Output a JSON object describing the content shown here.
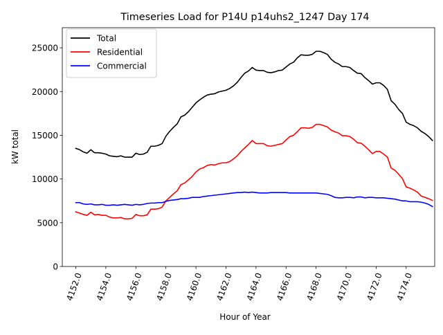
{
  "chart_data": {
    "type": "line",
    "title": "Timeseries Load for P14U p14uhs2_1247  Day 174",
    "xlabel": "Hour of Year",
    "ylabel": "kW total",
    "xlim": [
      4151.1,
      4175.9
    ],
    "ylim": [
      0,
      27300
    ],
    "x_ticks": [
      4152,
      4154,
      4156,
      4158,
      4160,
      4162,
      4164,
      4166,
      4168,
      4170,
      4172,
      4174
    ],
    "x_tick_labels": [
      "4152.0",
      "4154.0",
      "4156.0",
      "4158.0",
      "4160.0",
      "4162.0",
      "4164.0",
      "4166.0",
      "4168.0",
      "4170.0",
      "4172.0",
      "4174.0"
    ],
    "y_ticks": [
      0,
      5000,
      10000,
      15000,
      20000,
      25000
    ],
    "y_tick_labels": [
      "0",
      "5000",
      "10000",
      "15000",
      "20000",
      "25000"
    ],
    "legend_position": "top-left",
    "x": [
      4152.0,
      4152.25,
      4152.5,
      4152.75,
      4153.0,
      4153.25,
      4153.5,
      4153.75,
      4154.0,
      4154.25,
      4154.5,
      4154.75,
      4155.0,
      4155.25,
      4155.5,
      4155.75,
      4156.0,
      4156.25,
      4156.5,
      4156.75,
      4157.0,
      4157.25,
      4157.5,
      4157.75,
      4158.0,
      4158.25,
      4158.5,
      4158.75,
      4159.0,
      4159.25,
      4159.5,
      4159.75,
      4160.0,
      4160.25,
      4160.5,
      4160.75,
      4161.0,
      4161.25,
      4161.5,
      4161.75,
      4162.0,
      4162.25,
      4162.5,
      4162.75,
      4163.0,
      4163.25,
      4163.5,
      4163.75,
      4164.0,
      4164.25,
      4164.5,
      4164.75,
      4165.0,
      4165.25,
      4165.5,
      4165.75,
      4166.0,
      4166.25,
      4166.5,
      4166.75,
      4167.0,
      4167.25,
      4167.5,
      4167.75,
      4168.0,
      4168.25,
      4168.5,
      4168.75,
      4169.0,
      4169.25,
      4169.5,
      4169.75,
      4170.0,
      4170.25,
      4170.5,
      4170.75,
      4171.0,
      4171.25,
      4171.5,
      4171.75,
      4172.0,
      4172.25,
      4172.5,
      4172.75,
      4173.0,
      4173.25,
      4173.5,
      4173.75,
      4174.0,
      4174.25,
      4174.5,
      4174.75,
      4175.0,
      4175.25,
      4175.5,
      4175.75
    ],
    "series": [
      {
        "name": "Total",
        "color": "#000000",
        "values": [
          13500,
          13350,
          13100,
          12950,
          13350,
          13000,
          13000,
          12950,
          12850,
          12650,
          12600,
          12550,
          12650,
          12500,
          12500,
          12500,
          12950,
          12800,
          12850,
          13050,
          13750,
          13750,
          13850,
          14050,
          14900,
          15450,
          15900,
          16300,
          17100,
          17300,
          17700,
          18200,
          18700,
          19050,
          19350,
          19600,
          19700,
          19750,
          19950,
          20050,
          20150,
          20350,
          20650,
          21050,
          21600,
          22100,
          22350,
          22750,
          22450,
          22400,
          22400,
          22200,
          22150,
          22250,
          22400,
          22450,
          22800,
          23150,
          23350,
          23850,
          24200,
          24150,
          24150,
          24250,
          24600,
          24600,
          24450,
          24250,
          23700,
          23350,
          23150,
          22850,
          22850,
          22750,
          22400,
          22100,
          22050,
          21600,
          21250,
          20850,
          21000,
          21000,
          20700,
          20250,
          18950,
          18550,
          17950,
          17500,
          16500,
          16250,
          16100,
          15850,
          15450,
          15200,
          14850,
          14400
        ]
      },
      {
        "name": "Residential",
        "color": "#ff0000",
        "values": [
          6250,
          6100,
          5950,
          5850,
          6200,
          5900,
          5950,
          5850,
          5850,
          5650,
          5550,
          5550,
          5600,
          5450,
          5450,
          5500,
          5950,
          5800,
          5800,
          5900,
          6550,
          6550,
          6600,
          6800,
          7500,
          7900,
          8300,
          8650,
          9350,
          9550,
          9900,
          10300,
          10800,
          11150,
          11300,
          11550,
          11650,
          11600,
          11750,
          11850,
          11850,
          12000,
          12300,
          12650,
          13150,
          13550,
          13950,
          14400,
          14050,
          14050,
          14050,
          13800,
          13750,
          13850,
          13950,
          14050,
          14450,
          14850,
          15000,
          15400,
          15850,
          15850,
          15800,
          15900,
          16250,
          16250,
          16100,
          15950,
          15600,
          15400,
          15250,
          14950,
          14950,
          14850,
          14550,
          14150,
          14100,
          13750,
          13350,
          12900,
          13150,
          13150,
          12850,
          12500,
          11250,
          11000,
          10550,
          10050,
          9100,
          8950,
          8750,
          8500,
          8050,
          7900,
          7750,
          7550
        ]
      },
      {
        "name": "Commercial",
        "color": "#0000ff",
        "values": [
          7300,
          7300,
          7150,
          7100,
          7150,
          7050,
          7050,
          7100,
          7000,
          7000,
          7050,
          7000,
          7050,
          7100,
          7050,
          7000,
          7100,
          7050,
          7100,
          7200,
          7250,
          7250,
          7300,
          7300,
          7450,
          7550,
          7600,
          7650,
          7750,
          7750,
          7800,
          7900,
          7900,
          7900,
          8000,
          8050,
          8100,
          8150,
          8200,
          8250,
          8300,
          8350,
          8400,
          8450,
          8450,
          8500,
          8450,
          8500,
          8450,
          8400,
          8400,
          8400,
          8450,
          8450,
          8450,
          8450,
          8450,
          8400,
          8400,
          8400,
          8400,
          8400,
          8400,
          8400,
          8400,
          8350,
          8300,
          8250,
          8100,
          7900,
          7850,
          7850,
          7900,
          7900,
          7850,
          7950,
          7950,
          7850,
          7900,
          7900,
          7850,
          7850,
          7850,
          7800,
          7750,
          7700,
          7600,
          7500,
          7500,
          7400,
          7400,
          7400,
          7350,
          7250,
          7100,
          6850
        ]
      }
    ]
  }
}
